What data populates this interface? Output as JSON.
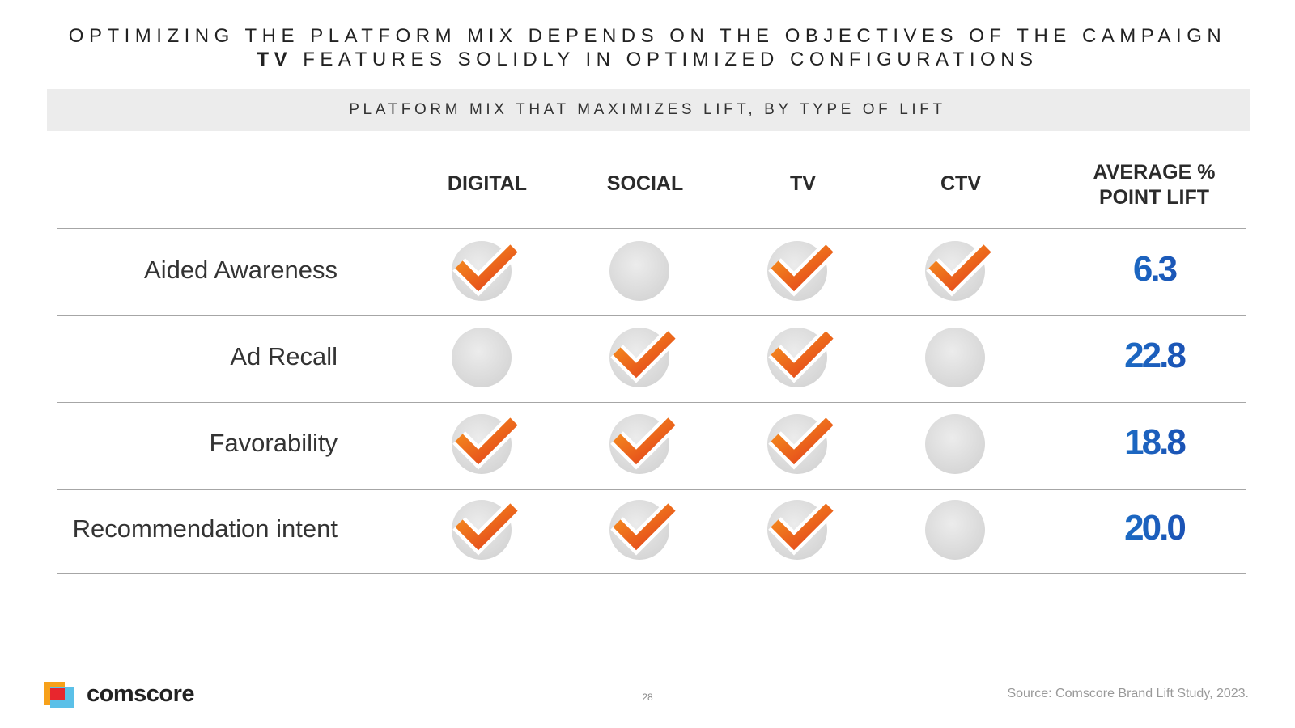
{
  "header": {
    "title_line1": "OPTIMIZING THE PLATFORM MIX DEPENDS ON THE OBJECTIVES OF THE CAMPAIGN",
    "title_line2_bold": "TV",
    "title_line2_rest": "FEATURES SOLIDLY IN OPTIMIZED CONFIGURATIONS"
  },
  "subtitle": "PLATFORM MIX THAT MAXIMIZES LIFT, BY TYPE OF LIFT",
  "table": {
    "columns": [
      "DIGITAL",
      "SOCIAL",
      "TV",
      "CTV"
    ],
    "lift_header": "AVERAGE % POINT LIFT",
    "rows": [
      {
        "label": "Aided Awareness",
        "checks": [
          true,
          false,
          true,
          true
        ],
        "lift": "6.3"
      },
      {
        "label": "Ad Recall",
        "checks": [
          false,
          true,
          true,
          false
        ],
        "lift": "22.8"
      },
      {
        "label": "Favorability",
        "checks": [
          true,
          true,
          true,
          false
        ],
        "lift": "18.8"
      },
      {
        "label": "Recommendation intent",
        "checks": [
          true,
          true,
          true,
          false
        ],
        "lift": "20.0"
      }
    ]
  },
  "footer": {
    "logo": "comscore",
    "page": "28",
    "source": "Source: Comscore Brand Lift Study, 2023."
  }
}
